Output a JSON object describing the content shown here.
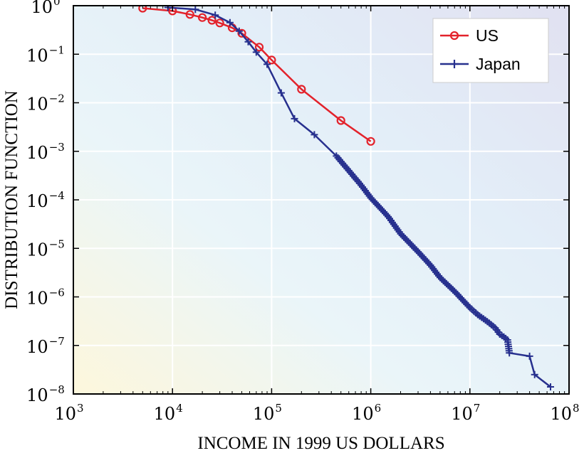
{
  "chart_data": {
    "type": "line",
    "title": "",
    "xlabel": "INCOME IN 1999 US DOLLARS",
    "ylabel": "DISTRIBUTION FUNCTION",
    "xscale": "log",
    "yscale": "log",
    "xlim": [
      1000,
      100000000
    ],
    "ylim": [
      1e-08,
      1
    ],
    "grid": true,
    "legend_position": "top-right",
    "x_ticks": [
      {
        "base": "10",
        "exp": "3",
        "value": 1000
      },
      {
        "base": "10",
        "exp": "4",
        "value": 10000
      },
      {
        "base": "10",
        "exp": "5",
        "value": 100000
      },
      {
        "base": "10",
        "exp": "6",
        "value": 1000000
      },
      {
        "base": "10",
        "exp": "7",
        "value": 10000000
      },
      {
        "base": "10",
        "exp": "8",
        "value": 100000000
      }
    ],
    "y_ticks": [
      {
        "base": "10",
        "exp": "0",
        "value": 1
      },
      {
        "base": "10",
        "exp": "−1",
        "value": 0.1
      },
      {
        "base": "10",
        "exp": "−2",
        "value": 0.01
      },
      {
        "base": "10",
        "exp": "−3",
        "value": 0.001
      },
      {
        "base": "10",
        "exp": "−4",
        "value": 0.0001
      },
      {
        "base": "10",
        "exp": "−5",
        "value": 1e-05
      },
      {
        "base": "10",
        "exp": "−6",
        "value": 1e-06
      },
      {
        "base": "10",
        "exp": "−7",
        "value": 1e-07
      },
      {
        "base": "10",
        "exp": "−8",
        "value": 1e-08
      }
    ],
    "series": [
      {
        "name": "US",
        "color": "#e3222b",
        "marker": "circle",
        "x": [
          5000,
          10000,
          15000,
          20000,
          25000,
          30000,
          40000,
          50000,
          75000,
          100000,
          200000,
          500000,
          1000000
        ],
        "y": [
          0.89,
          0.78,
          0.66,
          0.57,
          0.5,
          0.44,
          0.35,
          0.27,
          0.14,
          0.076,
          0.019,
          0.0043,
          0.0016
        ]
      },
      {
        "name": "Japan",
        "color": "#27308e",
        "marker": "plus",
        "x": [
          9000,
          17000,
          27000,
          38000,
          47000,
          58000,
          70000,
          90000,
          125000,
          170000,
          270000,
          450000,
          600000,
          800000,
          1000000,
          1500000,
          2000000,
          3000000,
          4000000,
          5000000,
          7000000,
          10000000,
          12000000,
          15000000,
          18000000,
          20000000,
          22000000,
          24000000,
          25000000,
          40000000,
          45000000,
          65000000
        ],
        "y": [
          0.92,
          0.84,
          0.64,
          0.45,
          0.3,
          0.18,
          0.11,
          0.062,
          0.016,
          0.0047,
          0.0022,
          0.0008,
          0.0004,
          0.0002,
          0.00011,
          4.5e-05,
          2e-05,
          8.5e-06,
          4.5e-06,
          2.5e-06,
          1.3e-06,
          6e-07,
          4.3e-07,
          3.1e-07,
          2.3e-07,
          1.7e-07,
          1.5e-07,
          1.3e-07,
          7e-08,
          6e-08,
          2.5e-08,
          1.4e-08
        ]
      }
    ]
  }
}
